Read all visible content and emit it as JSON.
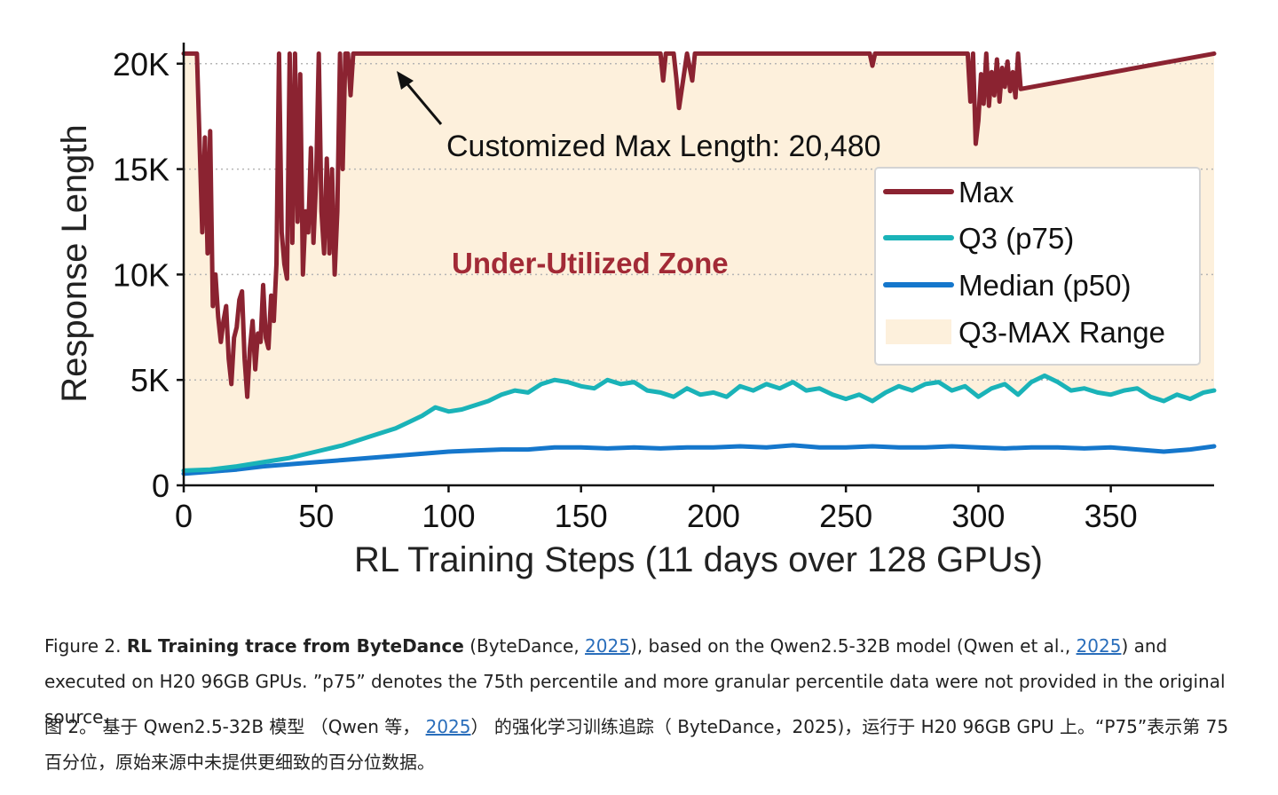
{
  "colors": {
    "max": "#8b2331",
    "q3": "#1ab3b8",
    "median": "#1577cc",
    "range_fill": "#fdf0dc",
    "annotation_text": "#a22a36",
    "link": "#2a6ebb"
  },
  "chart_data": {
    "type": "line",
    "ylabel": "Response Length",
    "xlabel": "RL Training Steps (11 days over 128 GPUs)",
    "xlim": [
      0,
      389
    ],
    "ylim": [
      0,
      21000
    ],
    "xticks": [
      0,
      50,
      100,
      150,
      200,
      250,
      300,
      350
    ],
    "xtick_labels": [
      "0",
      "50",
      "100",
      "150",
      "200",
      "250",
      "300",
      "350"
    ],
    "yticks": [
      0,
      5000,
      10000,
      15000,
      20000
    ],
    "ytick_labels": [
      "0",
      "5K",
      "10K",
      "15K",
      "20K"
    ],
    "grid": "y-dotted",
    "legend_position": "right",
    "legend": [
      {
        "label": "Max",
        "kind": "line",
        "series": "max"
      },
      {
        "label": "Q3 (p75)",
        "kind": "line",
        "series": "q3"
      },
      {
        "label": "Median (p50)",
        "kind": "line",
        "series": "median"
      },
      {
        "label": "Q3-MAX Range",
        "kind": "fill",
        "series": "range"
      }
    ],
    "annotations": {
      "max_length_label": "Customized Max Length: 20,480",
      "arrow_target": [
        81,
        20480
      ],
      "zone_label": "Under-Utilized Zone"
    },
    "series": [
      {
        "name": "Max",
        "key": "max",
        "x": [
          0,
          5,
          7,
          8,
          9,
          10,
          11,
          12,
          13,
          14,
          15,
          16,
          17,
          18,
          19,
          20,
          21,
          22,
          23,
          24,
          25,
          26,
          27,
          28,
          29,
          30,
          31,
          32,
          33,
          34,
          35,
          36,
          37,
          38,
          39,
          40,
          41,
          42,
          43,
          44,
          45,
          46,
          47,
          48,
          49,
          50,
          51,
          52,
          53,
          54,
          55,
          56,
          57,
          58,
          59,
          60,
          61,
          62,
          63,
          64,
          180,
          181,
          182,
          185,
          186,
          187,
          190,
          192,
          193,
          259,
          260,
          261,
          296,
          297,
          298,
          299,
          300,
          301,
          302,
          303,
          304,
          305,
          306,
          307,
          308,
          309,
          310,
          311,
          312,
          313,
          314,
          315,
          316,
          389
        ],
        "y": [
          20480,
          20480,
          12000,
          16500,
          11000,
          16800,
          8500,
          10000,
          8000,
          6800,
          7800,
          8500,
          6000,
          4800,
          7000,
          7500,
          8800,
          9200,
          6000,
          4200,
          6500,
          7800,
          5500,
          7200,
          6800,
          9500,
          7000,
          6500,
          9000,
          7800,
          10500,
          20480,
          12000,
          10500,
          9800,
          20480,
          11500,
          20480,
          12500,
          19500,
          10000,
          13000,
          12000,
          16000,
          11500,
          14500,
          20480,
          13000,
          11000,
          15500,
          11000,
          15000,
          10000,
          13000,
          20480,
          15000,
          20480,
          20480,
          18500,
          20480,
          20480,
          19200,
          20480,
          20480,
          19300,
          17900,
          20480,
          19200,
          20480,
          20480,
          19900,
          20480,
          20480,
          18200,
          20480,
          16200,
          17300,
          19500,
          18100,
          20480,
          18000,
          19600,
          18500,
          20200,
          18200,
          19800,
          18900,
          20100,
          18700,
          19600,
          18400,
          20480,
          18800,
          20480
        ]
      },
      {
        "name": "Q3 (p75)",
        "key": "q3",
        "x": [
          0,
          10,
          20,
          30,
          40,
          50,
          60,
          70,
          80,
          85,
          90,
          95,
          100,
          105,
          110,
          115,
          120,
          125,
          130,
          135,
          140,
          145,
          150,
          155,
          160,
          165,
          170,
          175,
          180,
          185,
          190,
          195,
          200,
          205,
          210,
          215,
          220,
          225,
          230,
          235,
          240,
          245,
          250,
          255,
          260,
          265,
          270,
          275,
          280,
          285,
          290,
          295,
          300,
          305,
          310,
          315,
          320,
          325,
          330,
          335,
          340,
          345,
          350,
          355,
          360,
          365,
          370,
          375,
          380,
          385,
          389
        ],
        "y": [
          700,
          750,
          900,
          1100,
          1300,
          1600,
          1900,
          2300,
          2700,
          3000,
          3300,
          3700,
          3500,
          3600,
          3800,
          4000,
          4300,
          4500,
          4400,
          4800,
          5000,
          4900,
          4700,
          4600,
          5000,
          4800,
          4900,
          4500,
          4400,
          4200,
          4600,
          4300,
          4400,
          4200,
          4700,
          4500,
          4800,
          4600,
          4900,
          4500,
          4600,
          4300,
          4100,
          4300,
          4000,
          4400,
          4700,
          4500,
          4800,
          4900,
          4500,
          4700,
          4200,
          4600,
          4800,
          4300,
          4900,
          5200,
          4900,
          4500,
          4600,
          4400,
          4300,
          4500,
          4600,
          4200,
          4000,
          4300,
          4100,
          4400,
          4500
        ]
      },
      {
        "name": "Median (p50)",
        "key": "median",
        "x": [
          0,
          10,
          20,
          30,
          40,
          50,
          60,
          70,
          80,
          90,
          100,
          110,
          120,
          130,
          140,
          150,
          160,
          170,
          180,
          190,
          200,
          210,
          220,
          230,
          240,
          250,
          260,
          270,
          280,
          290,
          300,
          310,
          320,
          330,
          340,
          350,
          360,
          370,
          380,
          389
        ],
        "y": [
          550,
          650,
          750,
          900,
          1000,
          1100,
          1200,
          1300,
          1400,
          1500,
          1600,
          1650,
          1700,
          1700,
          1800,
          1800,
          1750,
          1800,
          1750,
          1800,
          1800,
          1850,
          1800,
          1900,
          1800,
          1800,
          1850,
          1800,
          1800,
          1850,
          1800,
          1750,
          1800,
          1800,
          1750,
          1800,
          1700,
          1600,
          1700,
          1850
        ]
      }
    ]
  },
  "caption_en": {
    "prefix": "Figure 2.",
    "bold": "RL Training trace from ByteDance",
    "part1": "(ByteDance, ",
    "link1": "2025",
    "part2": "), based on the Qwen2.5-32B model  (Qwen et al., ",
    "link2": "2025",
    "part3": ") and executed on H20 96GB GPUs. ”p75” denotes the 75th percentile and more granular percentile data were not provided in the original source."
  },
  "caption_zh": {
    "part1": "图 2。 基于 Qwen2.5-32B 模型 （Qwen 等， ",
    "link1": "2025",
    "part2": "） 的强化学习训练追踪（ ByteDance，2025)，运行于 H20 96GB GPU 上。“P75”表示第 75 百分位，原始来源中未提供更细致的百分位数据。"
  }
}
